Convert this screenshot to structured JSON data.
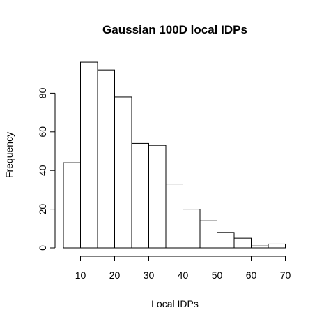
{
  "chart_data": {
    "type": "bar",
    "title": "Gaussian 100D local IDPs",
    "xlabel": "Local IDPs",
    "ylabel": "Frequency",
    "bins": [
      {
        "from": 5,
        "to": 10,
        "value": 44
      },
      {
        "from": 10,
        "to": 15,
        "value": 96
      },
      {
        "from": 15,
        "to": 20,
        "value": 92
      },
      {
        "from": 20,
        "to": 25,
        "value": 78
      },
      {
        "from": 25,
        "to": 30,
        "value": 54
      },
      {
        "from": 30,
        "to": 35,
        "value": 53
      },
      {
        "from": 35,
        "to": 40,
        "value": 33
      },
      {
        "from": 40,
        "to": 45,
        "value": 20
      },
      {
        "from": 45,
        "to": 50,
        "value": 14
      },
      {
        "from": 50,
        "to": 55,
        "value": 8
      },
      {
        "from": 55,
        "to": 60,
        "value": 5
      },
      {
        "from": 60,
        "to": 65,
        "value": 1
      },
      {
        "from": 65,
        "to": 70,
        "value": 2
      }
    ],
    "xlim": [
      5,
      70
    ],
    "ylim": [
      0,
      96
    ],
    "x_ticks": [
      "10",
      "20",
      "30",
      "40",
      "50",
      "60",
      "70"
    ],
    "y_ticks": [
      "0",
      "20",
      "40",
      "60",
      "80"
    ],
    "grid": false,
    "legend": "none"
  }
}
